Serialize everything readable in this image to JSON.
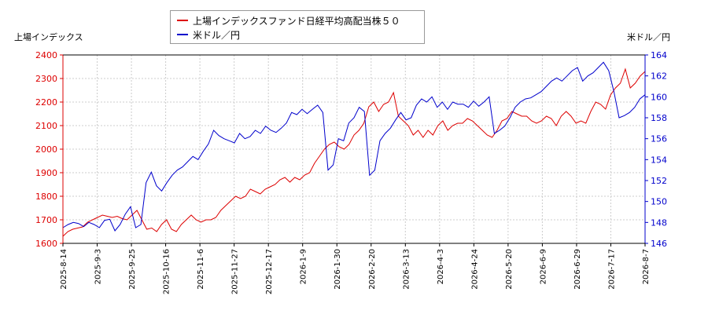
{
  "legend": {
    "items": [
      {
        "label": "上場インデックスファンド日経平均高配当株５０",
        "color": "#dd0000"
      },
      {
        "label": "米ドル／円",
        "color": "#0000cc"
      }
    ]
  },
  "axes": {
    "left_title": "上場インデックス",
    "right_title": "米ドル／円"
  },
  "chart_data": {
    "type": "line",
    "x_tick_labels": [
      "2025-8-14",
      "2025-9-3",
      "2025-9-25",
      "2025-10-16",
      "2025-11-6",
      "2025-11-27",
      "2025-12-17",
      "2026-1-9",
      "2026-1-30",
      "2026-2-20",
      "2026-3-13",
      "2026-4-3",
      "2026-4-24",
      "2026-5-20",
      "2026-6-9",
      "2026-6-29",
      "2026-7-17",
      "2026-8-7"
    ],
    "y_left": {
      "label": "上場インデックス",
      "range": [
        1600,
        2400
      ],
      "ticks": [
        1600,
        1700,
        1800,
        1900,
        2000,
        2100,
        2200,
        2300,
        2400
      ],
      "color": "#dd0000"
    },
    "y_right": {
      "label": "米ドル／円",
      "range": [
        146,
        164
      ],
      "ticks": [
        146,
        148,
        150,
        152,
        154,
        156,
        158,
        160,
        162,
        164
      ],
      "color": "#0000cc"
    },
    "grid": true,
    "legend_position": "top-center",
    "series": [
      {
        "name": "上場インデックスファンド日経平均高配当株５０",
        "axis": "left",
        "color": "#dd0000",
        "values": [
          1630,
          1650,
          1660,
          1665,
          1670,
          1690,
          1700,
          1710,
          1720,
          1715,
          1710,
          1715,
          1705,
          1700,
          1720,
          1740,
          1700,
          1660,
          1665,
          1650,
          1680,
          1700,
          1660,
          1650,
          1680,
          1700,
          1720,
          1700,
          1690,
          1700,
          1700,
          1710,
          1740,
          1760,
          1780,
          1800,
          1790,
          1800,
          1830,
          1820,
          1810,
          1830,
          1840,
          1850,
          1870,
          1880,
          1860,
          1880,
          1870,
          1890,
          1900,
          1940,
          1970,
          2000,
          2020,
          2030,
          2010,
          2000,
          2020,
          2060,
          2080,
          2110,
          2180,
          2200,
          2160,
          2190,
          2200,
          2240,
          2140,
          2120,
          2100,
          2060,
          2080,
          2050,
          2080,
          2060,
          2100,
          2120,
          2080,
          2100,
          2110,
          2110,
          2130,
          2120,
          2100,
          2080,
          2060,
          2050,
          2080,
          2120,
          2130,
          2160,
          2150,
          2140,
          2140,
          2120,
          2110,
          2120,
          2140,
          2130,
          2100,
          2140,
          2160,
          2140,
          2110,
          2120,
          2110,
          2160,
          2200,
          2190,
          2170,
          2230,
          2260,
          2280,
          2340,
          2260,
          2280,
          2310,
          2330
        ]
      },
      {
        "name": "米ドル／円",
        "axis": "right",
        "color": "#0000cc",
        "values": [
          147.5,
          147.8,
          148.0,
          147.9,
          147.6,
          148.0,
          147.8,
          147.5,
          148.2,
          148.3,
          147.2,
          147.8,
          148.8,
          149.5,
          147.5,
          147.8,
          151.8,
          152.8,
          151.5,
          151.0,
          151.8,
          152.5,
          153.0,
          153.3,
          153.8,
          154.3,
          154.0,
          154.8,
          155.5,
          156.8,
          156.3,
          156.0,
          155.8,
          155.6,
          156.5,
          156.0,
          156.2,
          156.8,
          156.5,
          157.2,
          156.8,
          156.6,
          157.0,
          157.5,
          158.5,
          158.3,
          158.8,
          158.4,
          158.8,
          159.2,
          158.5,
          153.0,
          153.5,
          156.0,
          155.8,
          157.5,
          158.0,
          159.0,
          158.6,
          152.5,
          153.0,
          155.8,
          156.5,
          157.0,
          157.8,
          158.5,
          157.8,
          158.0,
          159.2,
          159.8,
          159.5,
          160.0,
          159.0,
          159.5,
          158.8,
          159.5,
          159.3,
          159.3,
          159.0,
          159.6,
          159.1,
          159.5,
          160.0,
          156.5,
          156.8,
          157.2,
          158.0,
          159.0,
          159.5,
          159.8,
          159.9,
          160.2,
          160.5,
          161.0,
          161.5,
          161.8,
          161.5,
          162.0,
          162.5,
          162.8,
          161.5,
          162.0,
          162.3,
          162.8,
          163.3,
          162.5,
          160.5,
          158.0,
          158.2,
          158.5,
          159.0,
          159.8,
          160.2
        ]
      }
    ]
  }
}
